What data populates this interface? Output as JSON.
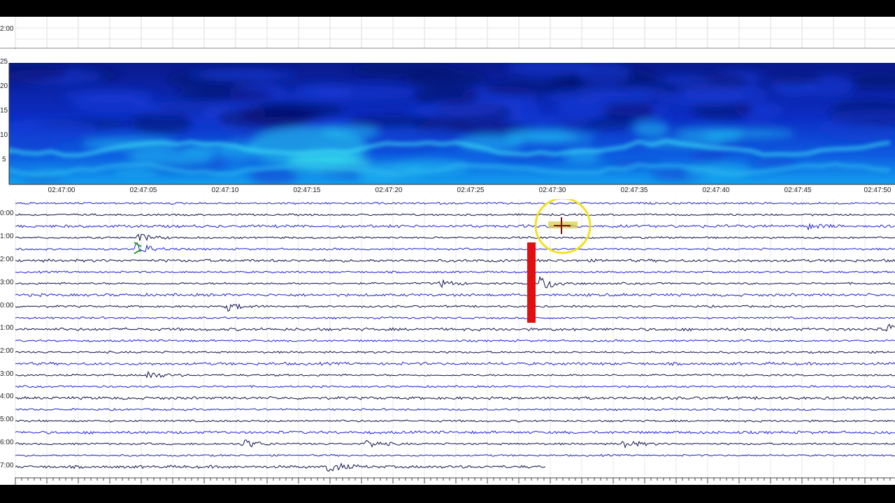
{
  "top_strip": {
    "row_label": "2:00"
  },
  "spectrogram": {
    "y_ticks": [
      "25",
      "20",
      "15",
      "10",
      "5"
    ],
    "time_ticks": [
      "02:47:00",
      "02:47:05",
      "02:47:10",
      "02:47:15",
      "02:47:20",
      "02:47:25",
      "02:47:30",
      "02:47:35",
      "02:47:40",
      "02:47:45",
      "02:47:50"
    ]
  },
  "helicorder": {
    "row_labels": [
      "0:00",
      "1:00",
      "2:00",
      "3:00",
      "0:00",
      "1:00",
      "2:00",
      "3:00",
      "4:00",
      "5:00",
      "6:00",
      "7:00"
    ],
    "trace_colors": [
      "#1f1fd6",
      "#10104a"
    ]
  },
  "colors": {
    "event_marker": "#e01010",
    "cursor_ring": "#f2e21a",
    "trace_blue": "#1f1fd6",
    "trace_navy": "#10104a"
  },
  "icons": {
    "cursor": "crosshair-cursor-icon",
    "event": "event-marker-icon"
  }
}
